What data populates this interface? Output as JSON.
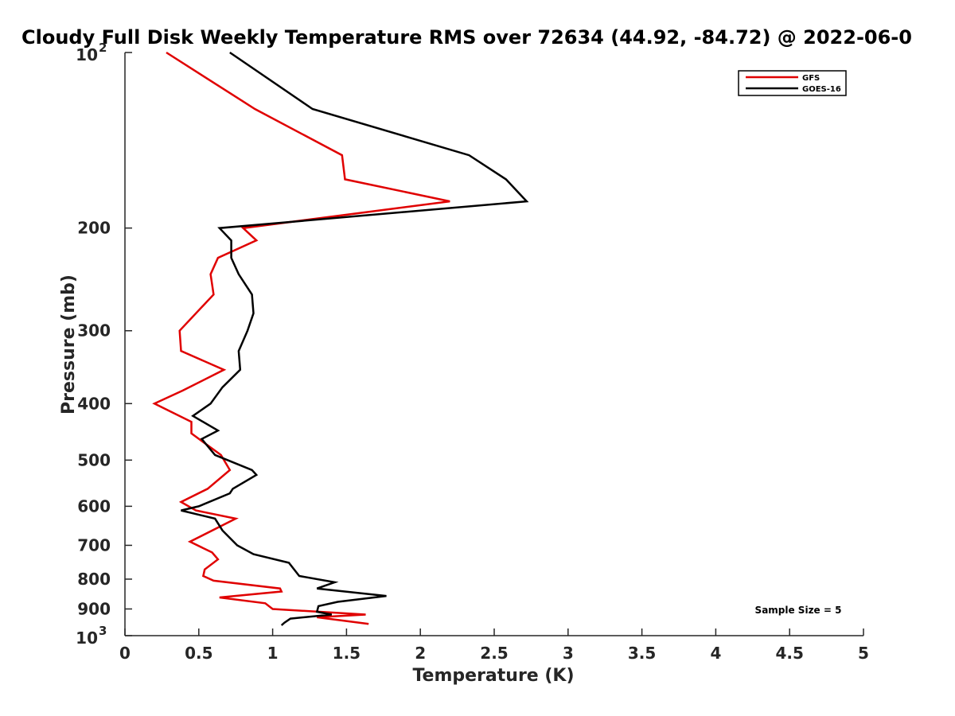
{
  "chart_data": {
    "type": "line",
    "title": "Cloudy Full Disk Weekly Temperature RMS over 72634 (44.92, -84.72) @ 2022-06-0",
    "xlabel": "Temperature (K)",
    "ylabel": "Pressure (mb)",
    "xlim": [
      0,
      5
    ],
    "ylim": [
      100,
      1000
    ],
    "yscale": "log",
    "y_reversed": true,
    "grid": false,
    "legend_position": "top-right",
    "x_ticks": [
      "0",
      "0.5",
      "1",
      "1.5",
      "2",
      "2.5",
      "3",
      "3.5",
      "4",
      "4.5",
      "5"
    ],
    "y_ticks": [
      {
        "value": 100,
        "base": "10",
        "exp": "2"
      },
      {
        "value": 200,
        "label": "200"
      },
      {
        "value": 300,
        "label": "300"
      },
      {
        "value": 400,
        "label": "400"
      },
      {
        "value": 500,
        "label": "500"
      },
      {
        "value": 600,
        "label": "600"
      },
      {
        "value": 700,
        "label": "700"
      },
      {
        "value": 800,
        "label": "800"
      },
      {
        "value": 900,
        "label": "900"
      },
      {
        "value": 1000,
        "base": "10",
        "exp": "3"
      }
    ],
    "annotation": "Sample Size = 5",
    "series": [
      {
        "name": "GFS",
        "color": "#e00000",
        "points": [
          [
            0.28,
            100
          ],
          [
            0.88,
            125
          ],
          [
            1.47,
            150
          ],
          [
            1.49,
            165
          ],
          [
            2.2,
            180
          ],
          [
            0.8,
            200
          ],
          [
            0.89,
            210
          ],
          [
            0.63,
            225
          ],
          [
            0.58,
            240
          ],
          [
            0.6,
            260
          ],
          [
            0.37,
            300
          ],
          [
            0.38,
            325
          ],
          [
            0.67,
            350
          ],
          [
            0.39,
            380
          ],
          [
            0.2,
            400
          ],
          [
            0.45,
            430
          ],
          [
            0.45,
            450
          ],
          [
            0.65,
            490
          ],
          [
            0.71,
            520
          ],
          [
            0.56,
            560
          ],
          [
            0.38,
            590
          ],
          [
            0.48,
            610
          ],
          [
            0.75,
            630
          ],
          [
            0.44,
            690
          ],
          [
            0.59,
            720
          ],
          [
            0.63,
            740
          ],
          [
            0.54,
            770
          ],
          [
            0.53,
            790
          ],
          [
            0.6,
            805
          ],
          [
            1.05,
            830
          ],
          [
            1.06,
            840
          ],
          [
            0.64,
            860
          ],
          [
            0.95,
            880
          ],
          [
            1.0,
            900
          ],
          [
            1.63,
            920
          ],
          [
            1.3,
            930
          ],
          [
            1.65,
            955
          ]
        ]
      },
      {
        "name": "GOES-16",
        "color": "#000000",
        "points": [
          [
            0.71,
            100
          ],
          [
            1.27,
            125
          ],
          [
            2.33,
            150
          ],
          [
            2.58,
            165
          ],
          [
            2.72,
            180
          ],
          [
            0.64,
            200
          ],
          [
            0.72,
            210
          ],
          [
            0.72,
            225
          ],
          [
            0.77,
            240
          ],
          [
            0.86,
            260
          ],
          [
            0.87,
            280
          ],
          [
            0.83,
            300
          ],
          [
            0.77,
            325
          ],
          [
            0.78,
            350
          ],
          [
            0.66,
            375
          ],
          [
            0.58,
            400
          ],
          [
            0.46,
            420
          ],
          [
            0.63,
            445
          ],
          [
            0.52,
            460
          ],
          [
            0.61,
            490
          ],
          [
            0.86,
            520
          ],
          [
            0.89,
            530
          ],
          [
            0.73,
            560
          ],
          [
            0.71,
            570
          ],
          [
            0.5,
            600
          ],
          [
            0.38,
            610
          ],
          [
            0.61,
            630
          ],
          [
            0.66,
            660
          ],
          [
            0.76,
            700
          ],
          [
            0.87,
            725
          ],
          [
            1.11,
            750
          ],
          [
            1.18,
            790
          ],
          [
            1.42,
            810
          ],
          [
            1.3,
            830
          ],
          [
            1.77,
            855
          ],
          [
            1.44,
            875
          ],
          [
            1.31,
            890
          ],
          [
            1.3,
            910
          ],
          [
            1.4,
            920
          ],
          [
            1.12,
            935
          ],
          [
            1.08,
            950
          ],
          [
            1.06,
            960
          ]
        ]
      }
    ]
  }
}
